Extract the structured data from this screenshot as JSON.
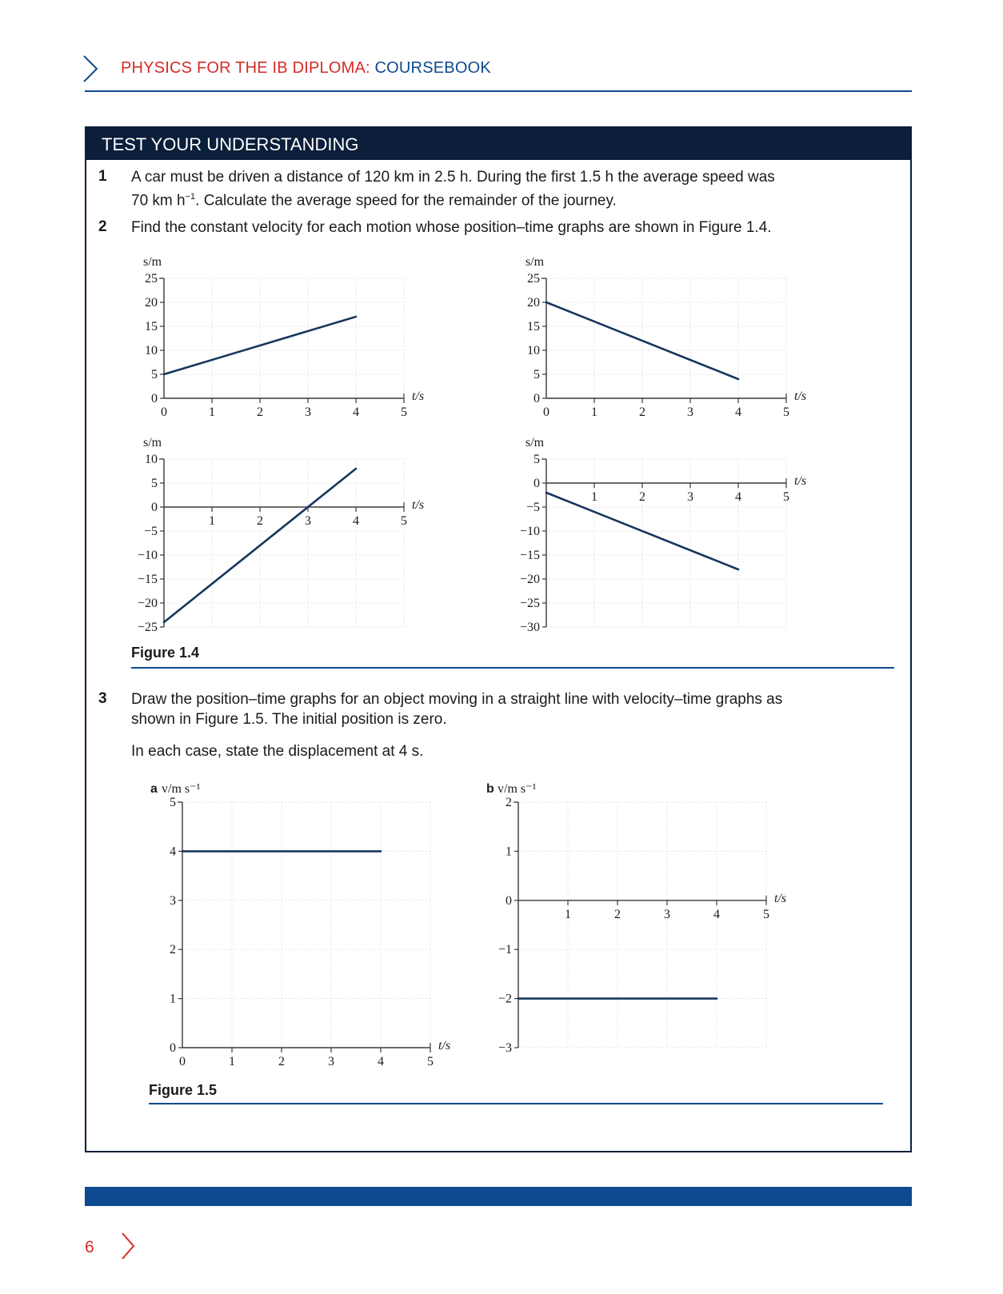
{
  "header": {
    "title_part1": "PHYSICS FOR THE IB DIPLOMA: ",
    "title_part2": "COURSEBOOK"
  },
  "box": {
    "title": "TEST YOUR UNDERSTANDING"
  },
  "questions": {
    "q1": {
      "number": "1",
      "line1": "A car must be driven a distance of 120 km in 2.5 h. During the first 1.5 h the average speed was",
      "line2_pre": "70 km h",
      "line2_sup": "−1",
      "line2_post": ". Calculate the average speed for the remainder of the journey."
    },
    "q2": {
      "number": "2",
      "line1": "Find the constant velocity for each motion whose position–time graphs are shown in Figure 1.4."
    },
    "q3": {
      "number": "3",
      "line1": "Draw the position–time graphs for an object moving in a straight line with velocity–time graphs as",
      "line2": "shown in Figure 1.5. The initial position is zero.",
      "line3": "In each case, state the displacement at 4 s."
    }
  },
  "figures": {
    "fig14_caption": "Figure 1.4",
    "fig15_caption": "Figure 1.5"
  },
  "chart_data": [
    {
      "type": "line",
      "ylabel": "s/m",
      "xlabel": "t/s",
      "xlim": [
        0,
        5
      ],
      "ylim": [
        0,
        25
      ],
      "xticks": [
        "0",
        "1",
        "2",
        "3",
        "4",
        "5"
      ],
      "yticks": [
        "0",
        "5",
        "10",
        "15",
        "20",
        "25"
      ],
      "series": [
        {
          "x": [
            0,
            4
          ],
          "y": [
            5,
            17
          ]
        }
      ]
    },
    {
      "type": "line",
      "ylabel": "s/m",
      "xlabel": "t/s",
      "xlim": [
        0,
        5
      ],
      "ylim": [
        0,
        25
      ],
      "xticks": [
        "0",
        "1",
        "2",
        "3",
        "4",
        "5"
      ],
      "yticks": [
        "0",
        "5",
        "10",
        "15",
        "20",
        "25"
      ],
      "series": [
        {
          "x": [
            0,
            4
          ],
          "y": [
            20,
            4
          ]
        }
      ]
    },
    {
      "type": "line",
      "ylabel": "s/m",
      "xlabel": "t/s",
      "xlim": [
        0,
        5
      ],
      "ylim": [
        -25,
        10
      ],
      "xticks": [
        "1",
        "2",
        "3",
        "4",
        "5"
      ],
      "yticks": [
        "−25",
        "−20",
        "−15",
        "−10",
        "−5",
        "0",
        "5",
        "10"
      ],
      "series": [
        {
          "x": [
            0,
            4
          ],
          "y": [
            -24,
            8
          ]
        }
      ]
    },
    {
      "type": "line",
      "ylabel": "s/m",
      "xlabel": "t/s",
      "xlim": [
        0,
        5
      ],
      "ylim": [
        -30,
        5
      ],
      "xticks": [
        "1",
        "2",
        "3",
        "4",
        "5"
      ],
      "yticks": [
        "−30",
        "−25",
        "−20",
        "−15",
        "−10",
        "−5",
        "0",
        "5"
      ],
      "series": [
        {
          "x": [
            0,
            4
          ],
          "y": [
            -2,
            -18
          ]
        }
      ]
    },
    {
      "type": "line",
      "panel": "a",
      "ylabel": "v/m s⁻¹",
      "xlabel": "t/s",
      "xlim": [
        0,
        5
      ],
      "ylim": [
        0,
        5
      ],
      "xticks": [
        "0",
        "1",
        "2",
        "3",
        "4",
        "5"
      ],
      "yticks": [
        "0",
        "1",
        "2",
        "3",
        "4",
        "5"
      ],
      "series": [
        {
          "x": [
            0,
            4
          ],
          "y": [
            4,
            4
          ]
        }
      ]
    },
    {
      "type": "line",
      "panel": "b",
      "ylabel": "v/m s⁻¹",
      "xlabel": "t/s",
      "xlim": [
        0,
        5
      ],
      "ylim": [
        -3,
        2
      ],
      "xticks": [
        "1",
        "2",
        "3",
        "4",
        "5"
      ],
      "yticks": [
        "−3",
        "−2",
        "−1",
        "0",
        "1",
        "2"
      ],
      "series": [
        {
          "x": [
            0,
            4
          ],
          "y": [
            -2,
            -2
          ]
        }
      ]
    }
  ],
  "footer": {
    "page_number": "6"
  }
}
